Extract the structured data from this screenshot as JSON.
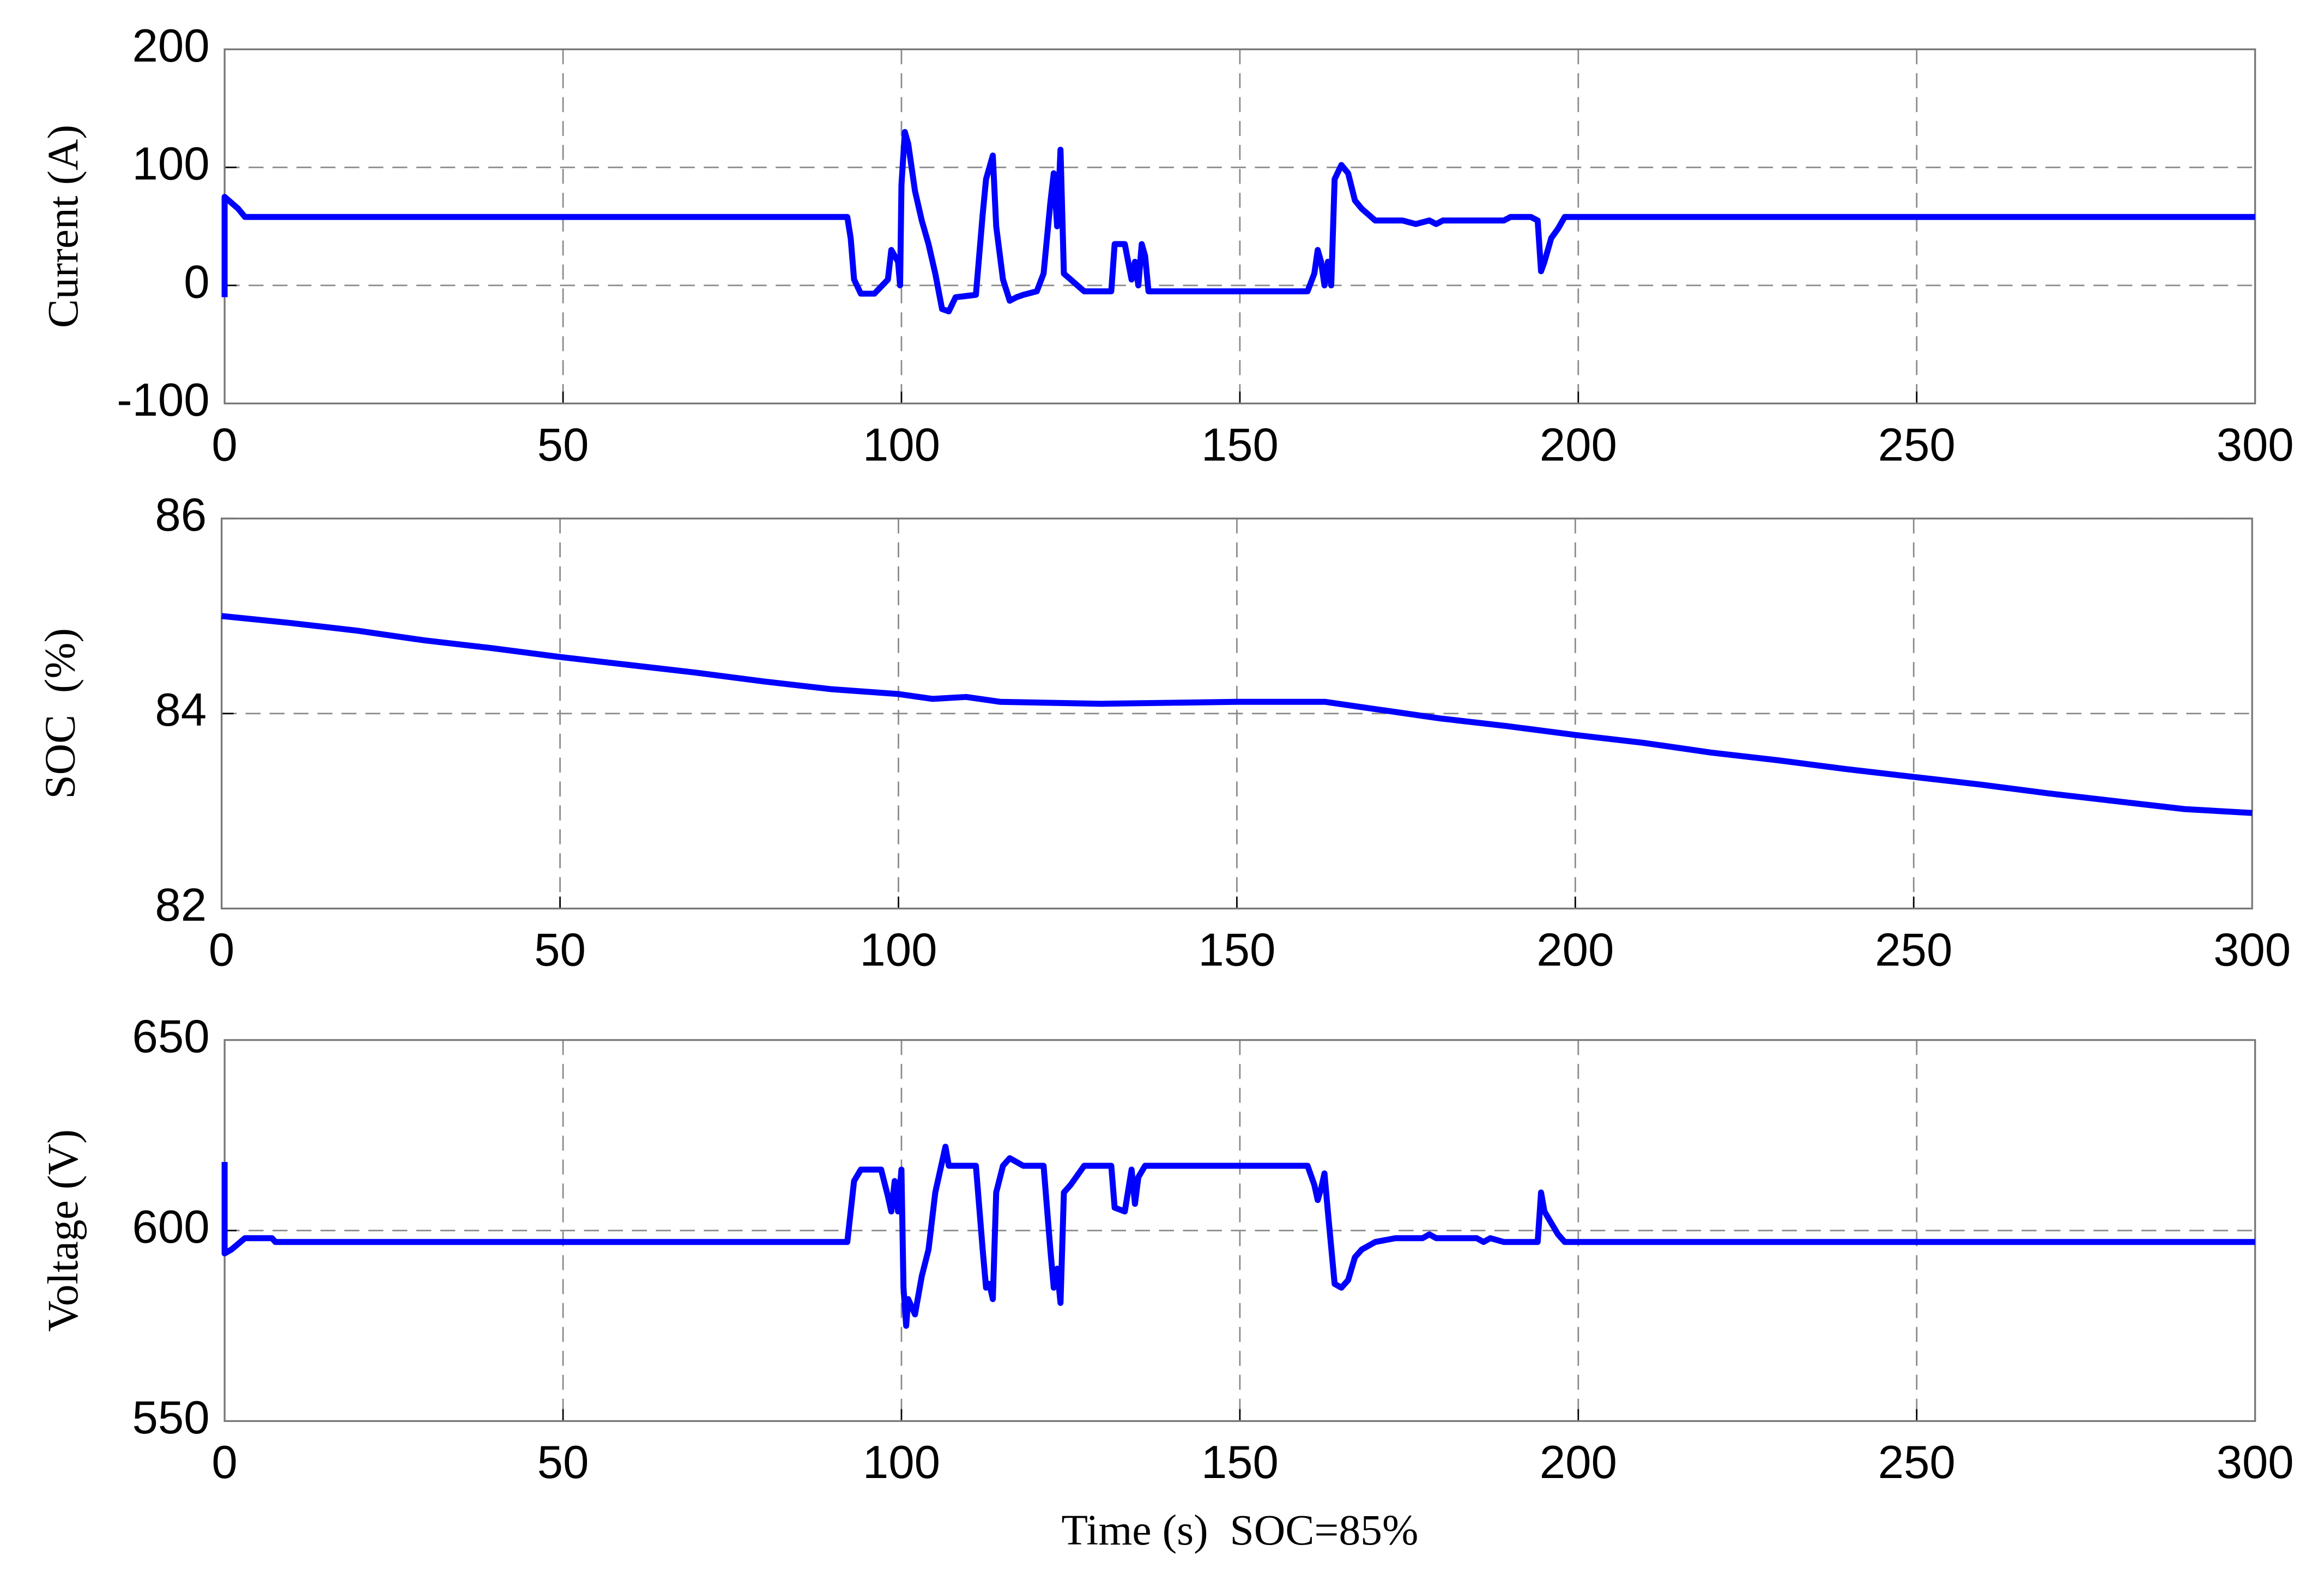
{
  "chart_data": [
    {
      "type": "line",
      "ylabel": "Current (A)",
      "x": [
        0,
        0,
        2,
        3,
        92,
        92.5,
        93,
        94,
        96,
        98,
        98.5,
        99.5,
        99.8,
        100,
        100.5,
        101,
        101.5,
        102,
        103,
        104,
        105,
        106,
        107,
        108,
        111,
        112,
        112.5,
        113,
        113.5,
        114,
        115,
        116,
        117,
        118,
        120,
        121,
        122,
        122.5,
        123,
        123.5,
        124,
        125,
        127,
        131,
        131.5,
        133,
        134,
        134.5,
        135,
        135.5,
        136,
        136.5,
        160,
        161,
        161.5,
        162,
        162.5,
        163,
        163.5,
        164,
        165,
        166,
        167,
        168,
        170,
        174,
        176,
        178,
        179,
        180,
        189,
        190,
        193,
        194,
        194.5,
        195,
        196,
        197,
        198,
        300
      ],
      "series": [
        {
          "color": "#0000ff",
          "values": [
            -10,
            75,
            65,
            58,
            58,
            40,
            5,
            -7,
            -7,
            5,
            30,
            20,
            0,
            85,
            130,
            120,
            100,
            80,
            55,
            35,
            10,
            -20,
            -22,
            -10,
            -8,
            60,
            90,
            100,
            110,
            50,
            5,
            -13,
            -10,
            -8,
            -5,
            10,
            70,
            95,
            50,
            115,
            10,
            5,
            -5,
            -5,
            35,
            35,
            5,
            20,
            0,
            35,
            25,
            -5,
            -5,
            10,
            30,
            20,
            0,
            20,
            0,
            90,
            102,
            95,
            72,
            65,
            55,
            55,
            52,
            55,
            52,
            55,
            55,
            58,
            58,
            55,
            12,
            20,
            40,
            48,
            58,
            58
          ]
        }
      ],
      "xlim": [
        0,
        300
      ],
      "xticks": [
        0,
        50,
        100,
        150,
        200,
        250,
        300
      ],
      "ylim": [
        -100,
        200
      ],
      "yticks": [
        -100,
        0,
        100,
        200
      ],
      "grid": true
    },
    {
      "type": "line",
      "ylabel": "SOC  (%)",
      "x": [
        0,
        10,
        20,
        30,
        40,
        50,
        60,
        70,
        80,
        90,
        100,
        105,
        110,
        115,
        130,
        150,
        163,
        170,
        180,
        190,
        200,
        210,
        220,
        230,
        240,
        250,
        260,
        270,
        280,
        290,
        300
      ],
      "series": [
        {
          "color": "#0000ff",
          "values": [
            85,
            84.93,
            84.85,
            84.75,
            84.67,
            84.58,
            84.5,
            84.42,
            84.33,
            84.25,
            84.2,
            84.15,
            84.17,
            84.12,
            84.1,
            84.12,
            84.12,
            84.05,
            83.95,
            83.87,
            83.78,
            83.7,
            83.6,
            83.52,
            83.43,
            83.35,
            83.27,
            83.18,
            83.1,
            83.02,
            82.98
          ]
        }
      ],
      "xlim": [
        0,
        300
      ],
      "xticks": [
        0,
        50,
        100,
        150,
        200,
        250,
        300
      ],
      "ylim": [
        82,
        86
      ],
      "yticks": [
        82,
        84,
        86
      ],
      "grid": true
    },
    {
      "type": "line",
      "ylabel": "Voltage (V)",
      "xlabel": "Time (s)  SOC=85%",
      "x": [
        0,
        0,
        1,
        3,
        7,
        7.5,
        92,
        92.5,
        93,
        94,
        97,
        98,
        98.5,
        99,
        99.5,
        100,
        100.3,
        100.7,
        101,
        102,
        103,
        104,
        105,
        106,
        106.5,
        107,
        111,
        112,
        112.5,
        113,
        113.5,
        114,
        115,
        116,
        118,
        121,
        122,
        122.5,
        123,
        123.5,
        124,
        125,
        127,
        131,
        131.5,
        133,
        134,
        134.5,
        135,
        136,
        160,
        161,
        161.5,
        162,
        162.5,
        163,
        164,
        165,
        166,
        167,
        168,
        170,
        173,
        177,
        178,
        179,
        185,
        186,
        187,
        189,
        194,
        194.5,
        195,
        196,
        197,
        198,
        300
      ],
      "series": [
        {
          "color": "#0000ff",
          "values": [
            618,
            594,
            595,
            598,
            598,
            597,
            597,
            605,
            613,
            616,
            616,
            609,
            605,
            613,
            605,
            616,
            585,
            575,
            582,
            578,
            588,
            595,
            610,
            618,
            622,
            617,
            617,
            595,
            585,
            586,
            582,
            610,
            617,
            619,
            617,
            617,
            595,
            585,
            590,
            581,
            610,
            612,
            617,
            617,
            606,
            605,
            616,
            607,
            614,
            617,
            617,
            612,
            608,
            611,
            615,
            605,
            586,
            585,
            587,
            593,
            595,
            597,
            598,
            598,
            599,
            598,
            598,
            597,
            598,
            597,
            597,
            610,
            605,
            602,
            599,
            597,
            597
          ]
        }
      ],
      "xlim": [
        0,
        300
      ],
      "xticks": [
        0,
        50,
        100,
        150,
        200,
        250,
        300
      ],
      "ylim": [
        550,
        650
      ],
      "yticks": [
        550,
        600,
        650
      ],
      "grid": true
    }
  ]
}
